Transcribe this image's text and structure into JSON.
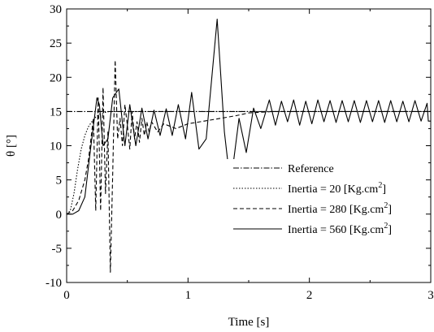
{
  "chart_data": {
    "type": "line",
    "xlabel": "Time [s]",
    "ylabel": "θ [°]",
    "xlim": [
      0,
      3
    ],
    "ylim": [
      -10,
      30
    ],
    "xticks": [
      0,
      1,
      2,
      3
    ],
    "yticks": [
      -10,
      -5,
      0,
      5,
      10,
      15,
      20,
      25,
      30
    ],
    "grid": false,
    "legend_position": "center-right",
    "series": [
      {
        "name": "Reference",
        "dash": "dashdot",
        "x": [
          0,
          3
        ],
        "y": [
          15,
          15
        ]
      },
      {
        "name": "Inertia =  20 [Kg.cm2]",
        "dash": "dotted",
        "x": [
          0,
          0.03,
          0.06,
          0.09,
          0.12,
          0.15,
          0.18,
          0.21,
          0.24,
          0.27,
          0.3,
          0.35,
          0.4,
          0.5,
          0.6,
          0.8,
          1.0,
          1.5,
          2.0,
          2.5,
          3.0
        ],
        "y": [
          0,
          0.5,
          3,
          6.5,
          9.5,
          11.5,
          12.8,
          13.6,
          14.2,
          14.6,
          14.8,
          15.0,
          15.0,
          15.0,
          15.0,
          15.0,
          15.0,
          15.0,
          15.0,
          15.0,
          15.0
        ]
      },
      {
        "name": "Inertia = 280 [Kg.cm2]",
        "dash": "dashed",
        "x": [
          0,
          0.05,
          0.1,
          0.15,
          0.18,
          0.2,
          0.22,
          0.24,
          0.26,
          0.28,
          0.3,
          0.32,
          0.34,
          0.36,
          0.38,
          0.4,
          0.42,
          0.44,
          0.46,
          0.48,
          0.5,
          0.52,
          0.54,
          0.56,
          0.58,
          0.6,
          0.62,
          0.64,
          0.66,
          0.68,
          0.7,
          0.75,
          0.8,
          0.9,
          1.0,
          1.1,
          1.2,
          1.3,
          1.4,
          1.5,
          1.7,
          2.0,
          2.5,
          3.0
        ],
        "y": [
          0,
          0.5,
          2,
          5,
          8,
          11,
          14,
          0.5,
          17,
          0.5,
          18.5,
          3,
          12,
          -8.5,
          6,
          22.5,
          11,
          14,
          10,
          16,
          13,
          9.5,
          15,
          11,
          13.5,
          10.5,
          14,
          11.5,
          13.5,
          12,
          13.5,
          12,
          13.2,
          12.5,
          13.2,
          13.5,
          13.8,
          14.1,
          14.4,
          14.8,
          15.0,
          15.0,
          15.0,
          15.0
        ]
      },
      {
        "name": "Inertia = 560 [Kg.cm2]",
        "dash": "solid",
        "x": [
          0,
          0.05,
          0.1,
          0.15,
          0.2,
          0.25,
          0.27,
          0.3,
          0.34,
          0.38,
          0.43,
          0.48,
          0.52,
          0.57,
          0.62,
          0.67,
          0.72,
          0.77,
          0.82,
          0.87,
          0.92,
          0.98,
          1.03,
          1.09,
          1.15,
          1.24,
          1.3,
          1.35,
          1.42,
          1.48,
          1.54,
          1.6,
          1.67,
          1.72,
          1.77,
          1.82,
          1.87,
          1.92,
          1.97,
          2.02,
          2.07,
          2.12,
          2.17,
          2.22,
          2.27,
          2.32,
          2.37,
          2.42,
          2.47,
          2.52,
          2.57,
          2.62,
          2.67,
          2.72,
          2.77,
          2.82,
          2.87,
          2.92,
          2.97,
          2.98,
          3.0
        ],
        "y": [
          0,
          0,
          0.5,
          2.5,
          10,
          17,
          16,
          10,
          11,
          17,
          18.3,
          10,
          16,
          10,
          15.5,
          11,
          15.2,
          11.5,
          15.4,
          11.5,
          16,
          11,
          17.8,
          9.5,
          11,
          28.5,
          12,
          4.2,
          14,
          9,
          15.5,
          12.5,
          16.7,
          13,
          16.5,
          13.5,
          16.7,
          13,
          16.5,
          13.2,
          16.7,
          13.5,
          16.6,
          13.4,
          16.6,
          13.5,
          16.6,
          13.4,
          16.6,
          13.5,
          16.6,
          13.4,
          16.6,
          13.5,
          16.5,
          13.5,
          16.6,
          13.6,
          16.2,
          13.6,
          13.6
        ]
      }
    ],
    "legend": [
      {
        "series": 0,
        "text": "Reference",
        "sup": ""
      },
      {
        "series": 1,
        "text": "Inertia =  20 [Kg.cm",
        "sup": "2",
        "suffix": "]"
      },
      {
        "series": 2,
        "text": "Inertia = 280 [Kg.cm",
        "sup": "2",
        "suffix": "]"
      },
      {
        "series": 3,
        "text": "Inertia = 560 [Kg.cm",
        "sup": "2",
        "suffix": "]"
      }
    ]
  }
}
